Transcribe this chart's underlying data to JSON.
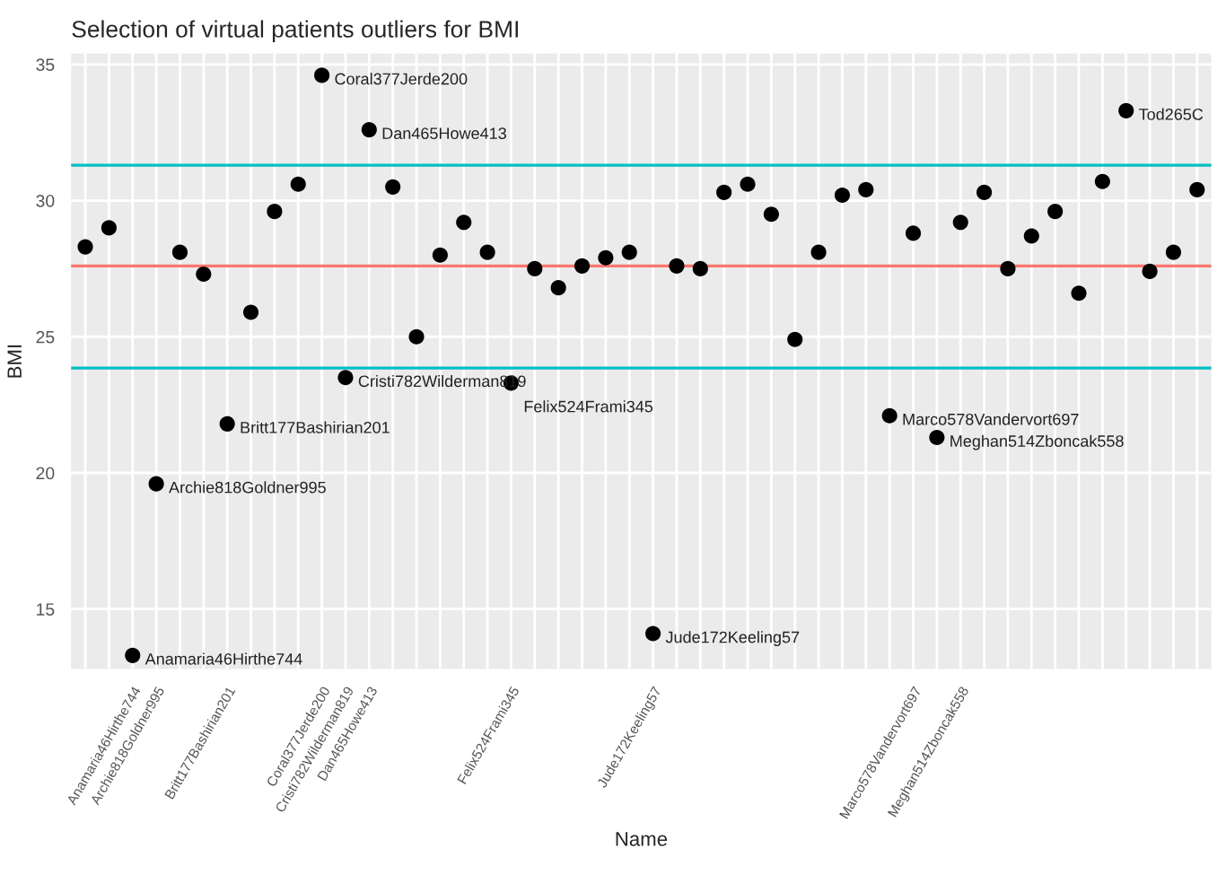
{
  "chart_data": {
    "type": "scatter",
    "title": "Selection of virtual patients outliers for BMI",
    "xlabel": "Name",
    "ylabel": "BMI",
    "categories": [
      null,
      null,
      "Anamaria46Hirthe744",
      "Archie818Goldner995",
      null,
      null,
      "Britt177Bashirian201",
      null,
      null,
      null,
      "Coral377Jerde200",
      "Cristi782Wilderman819",
      "Dan465Howe413",
      null,
      null,
      null,
      null,
      null,
      "Felix524Frami345",
      null,
      null,
      null,
      null,
      null,
      "Jude172Keeling57",
      null,
      null,
      null,
      null,
      null,
      null,
      null,
      null,
      null,
      null,
      "Marco578Vandervort697",
      null,
      "Meghan514Zboncak558",
      null,
      null,
      null,
      null,
      null,
      null,
      null,
      null,
      null,
      null
    ],
    "series": [
      {
        "color": "#000000",
        "values": [
          28.3,
          29.0,
          13.3,
          19.6,
          28.1,
          27.3,
          21.8,
          25.9,
          29.6,
          30.6,
          34.6,
          23.5,
          32.6,
          30.5,
          25.0,
          28.0,
          29.2,
          28.1,
          23.3,
          27.5,
          26.8,
          27.6,
          27.9,
          28.1,
          14.1,
          27.6,
          27.5,
          30.3,
          30.6,
          29.5,
          24.9,
          28.1,
          30.2,
          30.4,
          22.1,
          28.8,
          21.3,
          29.2,
          30.3,
          27.5,
          28.7,
          29.6,
          26.6,
          30.7,
          33.3,
          27.4,
          28.1,
          30.4
        ],
        "value_labels": [
          null,
          null,
          "Anamaria46Hirthe744",
          "Archie818Goldner995",
          null,
          null,
          "Britt177Bashirian201",
          null,
          null,
          null,
          "Coral377Jerde200",
          "Cristi782Wilderman819",
          "Dan465Howe413",
          null,
          null,
          null,
          null,
          null,
          "Felix524Frami345",
          null,
          null,
          null,
          null,
          null,
          "Jude172Keeling57",
          null,
          null,
          null,
          null,
          null,
          null,
          null,
          null,
          null,
          "Marco578Vandervort697",
          null,
          "Meghan514Zboncak558",
          null,
          null,
          null,
          null,
          null,
          null,
          null,
          "Tod265C",
          null,
          null,
          null
        ]
      }
    ],
    "ylim": [
      12.8,
      35.4
    ],
    "yticks": [
      15,
      20,
      25,
      30,
      35
    ],
    "grid": true,
    "marker": "circle",
    "ref_lines": [
      {
        "axis": "y",
        "value": 27.6,
        "color": "#f8766d"
      },
      {
        "axis": "y",
        "value": 31.3,
        "color": "#00bfc4"
      },
      {
        "axis": "y",
        "value": 23.85,
        "color": "#00bfc4"
      }
    ]
  }
}
